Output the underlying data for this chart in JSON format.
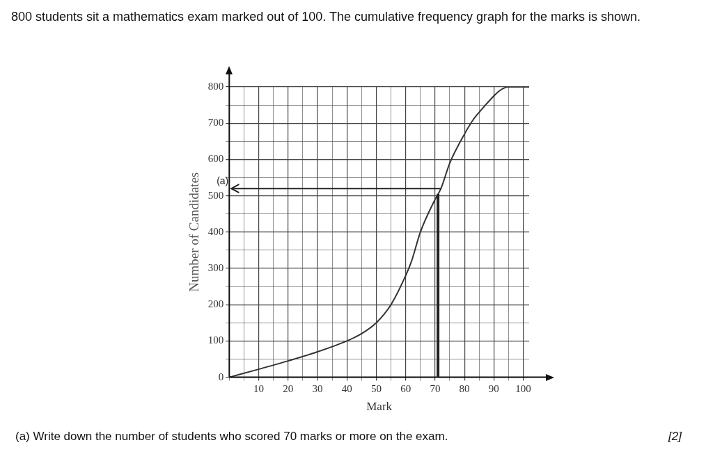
{
  "chart_data": {
    "type": "line",
    "title": "800 students sit a mathematics exam marked out of 100. The cumulative frequency graph for the marks is shown.",
    "xlabel": "Mark",
    "ylabel": "Number of Candidates",
    "x": [
      0,
      10,
      20,
      30,
      40,
      45,
      50,
      55,
      60,
      62,
      65,
      70,
      72,
      75,
      80,
      83,
      85,
      90,
      92,
      95,
      102
    ],
    "series": [
      {
        "color": "#333333",
        "values": [
          0,
          22,
          45,
          70,
          100,
          120,
          150,
          200,
          280,
          320,
          400,
          490,
          520,
          590,
          670,
          710,
          730,
          775,
          790,
          800,
          800
        ]
      }
    ],
    "xlim": [
      0,
      102
    ],
    "ylim": [
      0,
      800
    ],
    "xticks": [
      {
        "value": 0,
        "label": null
      },
      {
        "value": 5,
        "label": null
      },
      10,
      {
        "value": 15,
        "label": null
      },
      20,
      {
        "value": 25,
        "label": null
      },
      30,
      {
        "value": 35,
        "label": null
      },
      40,
      {
        "value": 45,
        "label": null
      },
      50,
      {
        "value": 55,
        "label": null
      },
      60,
      {
        "value": 65,
        "label": null
      },
      70,
      {
        "value": 75,
        "label": null
      },
      80,
      {
        "value": 85,
        "label": null
      },
      90,
      {
        "value": 95,
        "label": null
      },
      100
    ],
    "yticks": [
      0,
      {
        "value": 50,
        "label": null
      },
      100,
      {
        "value": 150,
        "label": null
      },
      200,
      {
        "value": 250,
        "label": null
      },
      300,
      {
        "value": 350,
        "label": null
      },
      400,
      {
        "value": 450,
        "label": null
      },
      500,
      {
        "value": 550,
        "label": null
      },
      600,
      {
        "value": 650,
        "label": null
      },
      700,
      {
        "value": 750,
        "label": null
      },
      800
    ],
    "grid": true,
    "legend": false,
    "marker": "none",
    "line_style": "solid",
    "ref_lines": [
      {
        "axis": "x",
        "value": 71,
        "color": "#222222"
      },
      {
        "axis": "y",
        "value": 520,
        "label": "(a)",
        "color": "#222222"
      }
    ],
    "annotations": [
      "(a) Write down the number of students who scored 70 marks or more on the exam.",
      "[2]"
    ]
  }
}
